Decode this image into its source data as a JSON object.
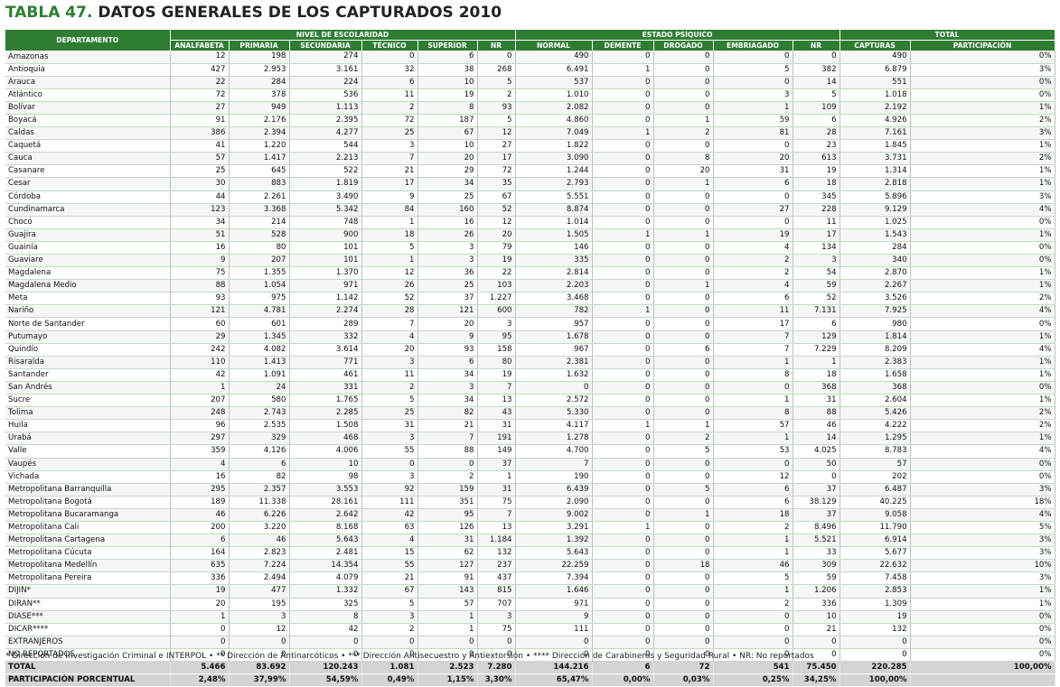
{
  "title": {
    "prefix": "TABLA 47.",
    "text": "DATOS GENERALES DE LOS CAPTURADOS 2010"
  },
  "header": {
    "department": "DEPARTAMENTO",
    "groups": [
      "NIVEL DE ESCOLARIDAD",
      "ESTADO PSÍQUICO",
      "TOTAL"
    ],
    "columns": [
      "ANALFABETA",
      "PRIMARIA",
      "SECUNDARIA",
      "TÉCNICO",
      "SUPERIOR",
      "NR",
      "NORMAL",
      "DEMENTE",
      "DROGADO",
      "EMBRIAGADO",
      "NR",
      "CAPTURAS",
      "PARTICIPACIÓN"
    ]
  },
  "rows": [
    [
      "Amazonas",
      "12",
      "198",
      "274",
      "0",
      "6",
      "0",
      "490",
      "0",
      "0",
      "0",
      "0",
      "490",
      "0%"
    ],
    [
      "Antioquia",
      "427",
      "2.953",
      "3.161",
      "32",
      "38",
      "268",
      "6.491",
      "1",
      "0",
      "5",
      "382",
      "6.879",
      "3%"
    ],
    [
      "Arauca",
      "22",
      "284",
      "224",
      "6",
      "10",
      "5",
      "537",
      "0",
      "0",
      "0",
      "14",
      "551",
      "0%"
    ],
    [
      "Atlántico",
      "72",
      "378",
      "536",
      "11",
      "19",
      "2",
      "1.010",
      "0",
      "0",
      "3",
      "5",
      "1.018",
      "0%"
    ],
    [
      "Bolívar",
      "27",
      "949",
      "1.113",
      "2",
      "8",
      "93",
      "2.082",
      "0",
      "0",
      "1",
      "109",
      "2.192",
      "1%"
    ],
    [
      "Boyacá",
      "91",
      "2.176",
      "2.395",
      "72",
      "187",
      "5",
      "4.860",
      "0",
      "1",
      "59",
      "6",
      "4.926",
      "2%"
    ],
    [
      "Caldas",
      "386",
      "2.394",
      "4.277",
      "25",
      "67",
      "12",
      "7.049",
      "1",
      "2",
      "81",
      "28",
      "7.161",
      "3%"
    ],
    [
      "Caquetá",
      "41",
      "1.220",
      "544",
      "3",
      "10",
      "27",
      "1.822",
      "0",
      "0",
      "0",
      "23",
      "1.845",
      "1%"
    ],
    [
      "Cauca",
      "57",
      "1.417",
      "2.213",
      "7",
      "20",
      "17",
      "3.090",
      "0",
      "8",
      "20",
      "613",
      "3.731",
      "2%"
    ],
    [
      "Casanare",
      "25",
      "645",
      "522",
      "21",
      "29",
      "72",
      "1.244",
      "0",
      "20",
      "31",
      "19",
      "1.314",
      "1%"
    ],
    [
      "Cesar",
      "30",
      "883",
      "1.819",
      "17",
      "34",
      "35",
      "2.793",
      "0",
      "1",
      "6",
      "18",
      "2.818",
      "1%"
    ],
    [
      "Córdoba",
      "44",
      "2.261",
      "3.490",
      "9",
      "25",
      "67",
      "5.551",
      "0",
      "0",
      "0",
      "345",
      "5.896",
      "3%"
    ],
    [
      "Cundinamarca",
      "123",
      "3.368",
      "5.342",
      "84",
      "160",
      "52",
      "8.874",
      "0",
      "0",
      "27",
      "228",
      "9.129",
      "4%"
    ],
    [
      "Chocó",
      "34",
      "214",
      "748",
      "1",
      "16",
      "12",
      "1.014",
      "0",
      "0",
      "0",
      "11",
      "1.025",
      "0%"
    ],
    [
      "Guajira",
      "51",
      "528",
      "900",
      "18",
      "26",
      "20",
      "1.505",
      "1",
      "1",
      "19",
      "17",
      "1.543",
      "1%"
    ],
    [
      "Guainía",
      "16",
      "80",
      "101",
      "5",
      "3",
      "79",
      "146",
      "0",
      "0",
      "4",
      "134",
      "284",
      "0%"
    ],
    [
      "Guaviare",
      "9",
      "207",
      "101",
      "1",
      "3",
      "19",
      "335",
      "0",
      "0",
      "2",
      "3",
      "340",
      "0%"
    ],
    [
      "Magdalena",
      "75",
      "1.355",
      "1.370",
      "12",
      "36",
      "22",
      "2.814",
      "0",
      "0",
      "2",
      "54",
      "2.870",
      "1%"
    ],
    [
      "Magdalena Medio",
      "88",
      "1.054",
      "971",
      "26",
      "25",
      "103",
      "2.203",
      "0",
      "1",
      "4",
      "59",
      "2.267",
      "1%"
    ],
    [
      "Meta",
      "93",
      "975",
      "1.142",
      "52",
      "37",
      "1.227",
      "3.468",
      "0",
      "0",
      "6",
      "52",
      "3.526",
      "2%"
    ],
    [
      "Nariño",
      "121",
      "4.781",
      "2.274",
      "28",
      "121",
      "600",
      "782",
      "1",
      "0",
      "11",
      "7.131",
      "7.925",
      "4%"
    ],
    [
      "Norte de Santander",
      "60",
      "601",
      "289",
      "7",
      "20",
      "3",
      "957",
      "0",
      "0",
      "17",
      "6",
      "980",
      "0%"
    ],
    [
      "Putumayo",
      "29",
      "1.345",
      "332",
      "4",
      "9",
      "95",
      "1.678",
      "0",
      "0",
      "7",
      "129",
      "1.814",
      "1%"
    ],
    [
      "Quindío",
      "242",
      "4.082",
      "3.614",
      "20",
      "93",
      "158",
      "967",
      "0",
      "6",
      "7",
      "7.229",
      "8.209",
      "4%"
    ],
    [
      "Risaralda",
      "110",
      "1.413",
      "771",
      "3",
      "6",
      "80",
      "2.381",
      "0",
      "0",
      "1",
      "1",
      "2.383",
      "1%"
    ],
    [
      "Santander",
      "42",
      "1.091",
      "461",
      "11",
      "34",
      "19",
      "1.632",
      "0",
      "0",
      "8",
      "18",
      "1.658",
      "1%"
    ],
    [
      "San Andrés",
      "1",
      "24",
      "331",
      "2",
      "3",
      "7",
      "0",
      "0",
      "0",
      "0",
      "368",
      "368",
      "0%"
    ],
    [
      "Sucre",
      "207",
      "580",
      "1.765",
      "5",
      "34",
      "13",
      "2.572",
      "0",
      "0",
      "1",
      "31",
      "2.604",
      "1%"
    ],
    [
      "Tolima",
      "248",
      "2.743",
      "2.285",
      "25",
      "82",
      "43",
      "5.330",
      "0",
      "0",
      "8",
      "88",
      "5.426",
      "2%"
    ],
    [
      "Huila",
      "96",
      "2.535",
      "1.508",
      "31",
      "21",
      "31",
      "4.117",
      "1",
      "1",
      "57",
      "46",
      "4.222",
      "2%"
    ],
    [
      "Urabá",
      "297",
      "329",
      "468",
      "3",
      "7",
      "191",
      "1.278",
      "0",
      "2",
      "1",
      "14",
      "1.295",
      "1%"
    ],
    [
      "Valle",
      "359",
      "4.126",
      "4.006",
      "55",
      "88",
      "149",
      "4.700",
      "0",
      "5",
      "53",
      "4.025",
      "8.783",
      "4%"
    ],
    [
      "Vaupés",
      "4",
      "6",
      "10",
      "0",
      "0",
      "37",
      "7",
      "0",
      "0",
      "0",
      "50",
      "57",
      "0%"
    ],
    [
      "Vichada",
      "16",
      "82",
      "98",
      "3",
      "2",
      "1",
      "190",
      "0",
      "0",
      "12",
      "0",
      "202",
      "0%"
    ],
    [
      "Metropolitana Barranquilla",
      "295",
      "2.357",
      "3.553",
      "92",
      "159",
      "31",
      "6.439",
      "0",
      "5",
      "6",
      "37",
      "6.487",
      "3%"
    ],
    [
      "Metropolitana Bogotá",
      "189",
      "11.338",
      "28.161",
      "111",
      "351",
      "75",
      "2.090",
      "0",
      "0",
      "6",
      "38.129",
      "40.225",
      "18%"
    ],
    [
      "Metropolitana Bucaramanga",
      "46",
      "6.226",
      "2.642",
      "42",
      "95",
      "7",
      "9.002",
      "0",
      "1",
      "18",
      "37",
      "9.058",
      "4%"
    ],
    [
      "Metropolitana Cali",
      "200",
      "3.220",
      "8.168",
      "63",
      "126",
      "13",
      "3.291",
      "1",
      "0",
      "2",
      "8.496",
      "11.790",
      "5%"
    ],
    [
      "Metropolitana Cartagena",
      "6",
      "46",
      "5.643",
      "4",
      "31",
      "1.184",
      "1.392",
      "0",
      "0",
      "1",
      "5.521",
      "6.914",
      "3%"
    ],
    [
      "Metropolitana Cúcuta",
      "164",
      "2.823",
      "2.481",
      "15",
      "62",
      "132",
      "5.643",
      "0",
      "0",
      "1",
      "33",
      "5.677",
      "3%"
    ],
    [
      "Metropolitana Medellín",
      "635",
      "7.224",
      "14.354",
      "55",
      "127",
      "237",
      "22.259",
      "0",
      "18",
      "46",
      "309",
      "22.632",
      "10%"
    ],
    [
      "Metropolitana Pereira",
      "336",
      "2.494",
      "4.079",
      "21",
      "91",
      "437",
      "7.394",
      "0",
      "0",
      "5",
      "59",
      "7.458",
      "3%"
    ],
    [
      "DIJIN*",
      "19",
      "477",
      "1.332",
      "67",
      "143",
      "815",
      "1.646",
      "0",
      "0",
      "1",
      "1.206",
      "2.853",
      "1%"
    ],
    [
      "DIRAN**",
      "20",
      "195",
      "325",
      "5",
      "57",
      "707",
      "971",
      "0",
      "0",
      "2",
      "336",
      "1.309",
      "1%"
    ],
    [
      "DIASE***",
      "1",
      "3",
      "8",
      "3",
      "1",
      "3",
      "9",
      "0",
      "0",
      "0",
      "10",
      "19",
      "0%"
    ],
    [
      "DICAR****",
      "0",
      "12",
      "42",
      "2",
      "1",
      "75",
      "111",
      "0",
      "0",
      "0",
      "21",
      "132",
      "0%"
    ],
    [
      "EXTRANJEROS",
      "0",
      "0",
      "0",
      "0",
      "0",
      "0",
      "0",
      "0",
      "0",
      "0",
      "0",
      "0",
      "0%"
    ],
    [
      "NO REPORTADOS",
      "0",
      "0",
      "0",
      "0",
      "0",
      "0",
      "0",
      "0",
      "0",
      "0",
      "0",
      "0",
      "0%"
    ]
  ],
  "total": [
    "TOTAL",
    "5.466",
    "83.692",
    "120.243",
    "1.081",
    "2.523",
    "7.280",
    "144.216",
    "6",
    "72",
    "541",
    "75.450",
    "220.285",
    "100,00%"
  ],
  "participation": [
    "PARTICIPACIÓN PORCENTUAL",
    "2,48%",
    "37,99%",
    "54,59%",
    "0,49%",
    "1,15%",
    "3,30%",
    "65,47%",
    "0,00%",
    "0,03%",
    "0,25%",
    "34,25%",
    "100,00%",
    ""
  ],
  "footnote": "* Dirección de Investigación Criminal e INTERPOL • ** Dirección de Antinarcóticos • *** Dirección Antisecuestro y Antiextorsión • **** Dirección de Carabineros y Seguridad Rural • NR: No reportados"
}
